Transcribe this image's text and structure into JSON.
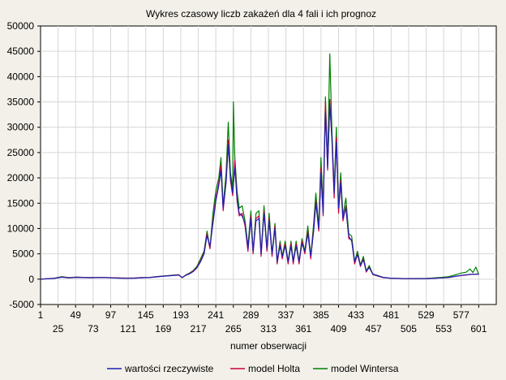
{
  "chart_data": {
    "type": "line",
    "title": "Wykres czasowy liczb zakażeń dla 4 fali i ich prognoz",
    "xlabel": "numer obserwacji",
    "ylabel": "",
    "xlim": [
      1,
      625
    ],
    "ylim": [
      -5000,
      50000
    ],
    "x_ticks_upper": [
      "1",
      "49",
      "97",
      "145",
      "193",
      "241",
      "289",
      "337",
      "385",
      "433",
      "481",
      "529",
      "577"
    ],
    "x_ticks_lower": [
      "25",
      "73",
      "121",
      "169",
      "217",
      "265",
      "313",
      "361",
      "409",
      "457",
      "505",
      "553",
      "601"
    ],
    "y_ticks": [
      "-5000",
      "0",
      "5000",
      "10000",
      "15000",
      "20000",
      "25000",
      "30000",
      "35000",
      "40000",
      "45000",
      "50000"
    ],
    "grid": true,
    "legend_position": "bottom",
    "series": [
      {
        "name": "wartości rzeczywiste",
        "color": "#1f1fb4",
        "points": [
          [
            1,
            0
          ],
          [
            20,
            150
          ],
          [
            30,
            380
          ],
          [
            40,
            250
          ],
          [
            50,
            350
          ],
          [
            60,
            300
          ],
          [
            70,
            280
          ],
          [
            80,
            320
          ],
          [
            90,
            300
          ],
          [
            100,
            250
          ],
          [
            110,
            200
          ],
          [
            120,
            180
          ],
          [
            130,
            200
          ],
          [
            140,
            280
          ],
          [
            150,
            300
          ],
          [
            160,
            450
          ],
          [
            170,
            600
          ],
          [
            180,
            700
          ],
          [
            190,
            800
          ],
          [
            195,
            350
          ],
          [
            200,
            750
          ],
          [
            205,
            1050
          ],
          [
            210,
            1500
          ],
          [
            215,
            2200
          ],
          [
            220,
            3400
          ],
          [
            225,
            5000
          ],
          [
            229,
            8600
          ],
          [
            233,
            6500
          ],
          [
            237,
            11000
          ],
          [
            241,
            15500
          ],
          [
            245,
            18500
          ],
          [
            248,
            21500
          ],
          [
            251,
            14000
          ],
          [
            255,
            19000
          ],
          [
            258,
            26500
          ],
          [
            261,
            20000
          ],
          [
            264,
            17000
          ],
          [
            267,
            22000
          ],
          [
            270,
            16000
          ],
          [
            273,
            13000
          ],
          [
            277,
            12500
          ],
          [
            281,
            11000
          ],
          [
            285,
            6000
          ],
          [
            289,
            12000
          ],
          [
            292,
            5500
          ],
          [
            296,
            11500
          ],
          [
            300,
            12000
          ],
          [
            303,
            5000
          ],
          [
            307,
            13000
          ],
          [
            311,
            6000
          ],
          [
            314,
            11500
          ],
          [
            318,
            5000
          ],
          [
            322,
            10000
          ],
          [
            325,
            3500
          ],
          [
            329,
            6500
          ],
          [
            332,
            4500
          ],
          [
            336,
            6500
          ],
          [
            340,
            3500
          ],
          [
            344,
            6500
          ],
          [
            347,
            3500
          ],
          [
            351,
            6500
          ],
          [
            355,
            3500
          ],
          [
            359,
            7000
          ],
          [
            363,
            5500
          ],
          [
            367,
            9000
          ],
          [
            371,
            4500
          ],
          [
            375,
            9500
          ],
          [
            378,
            15000
          ],
          [
            382,
            10000
          ],
          [
            385,
            21000
          ],
          [
            388,
            13000
          ],
          [
            391,
            33000
          ],
          [
            394,
            22000
          ],
          [
            397,
            34500
          ],
          [
            400,
            28000
          ],
          [
            403,
            17000
          ],
          [
            406,
            27000
          ],
          [
            409,
            14000
          ],
          [
            412,
            19000
          ],
          [
            415,
            12000
          ],
          [
            419,
            14000
          ],
          [
            423,
            8500
          ],
          [
            427,
            7500
          ],
          [
            431,
            3500
          ],
          [
            435,
            4800
          ],
          [
            439,
            2800
          ],
          [
            443,
            3800
          ],
          [
            447,
            1600
          ],
          [
            451,
            2300
          ],
          [
            456,
            1000
          ],
          [
            462,
            700
          ],
          [
            470,
            350
          ],
          [
            480,
            200
          ],
          [
            500,
            100
          ],
          [
            530,
            120
          ],
          [
            550,
            250
          ],
          [
            560,
            350
          ],
          [
            570,
            600
          ],
          [
            580,
            800
          ],
          [
            590,
            950
          ],
          [
            601,
            1000
          ]
        ]
      },
      {
        "name": "model Holta",
        "color": "#c8003c",
        "points": [
          [
            1,
            0
          ],
          [
            20,
            180
          ],
          [
            30,
            420
          ],
          [
            40,
            280
          ],
          [
            50,
            380
          ],
          [
            60,
            330
          ],
          [
            70,
            300
          ],
          [
            80,
            340
          ],
          [
            90,
            320
          ],
          [
            100,
            270
          ],
          [
            110,
            220
          ],
          [
            120,
            200
          ],
          [
            130,
            220
          ],
          [
            140,
            300
          ],
          [
            150,
            320
          ],
          [
            160,
            480
          ],
          [
            170,
            620
          ],
          [
            180,
            720
          ],
          [
            190,
            850
          ],
          [
            195,
            300
          ],
          [
            200,
            800
          ],
          [
            205,
            1100
          ],
          [
            210,
            1600
          ],
          [
            215,
            2300
          ],
          [
            220,
            3600
          ],
          [
            225,
            5200
          ],
          [
            229,
            9000
          ],
          [
            233,
            6000
          ],
          [
            237,
            11500
          ],
          [
            241,
            16000
          ],
          [
            245,
            19000
          ],
          [
            248,
            22500
          ],
          [
            251,
            13500
          ],
          [
            255,
            19500
          ],
          [
            258,
            27500
          ],
          [
            261,
            19500
          ],
          [
            264,
            16500
          ],
          [
            267,
            23500
          ],
          [
            270,
            15500
          ],
          [
            273,
            12500
          ],
          [
            277,
            13000
          ],
          [
            281,
            10500
          ],
          [
            285,
            5500
          ],
          [
            289,
            12500
          ],
          [
            292,
            5000
          ],
          [
            296,
            12000
          ],
          [
            300,
            12500
          ],
          [
            303,
            4500
          ],
          [
            307,
            13500
          ],
          [
            311,
            5500
          ],
          [
            314,
            12000
          ],
          [
            318,
            4500
          ],
          [
            322,
            10500
          ],
          [
            325,
            3000
          ],
          [
            329,
            7000
          ],
          [
            332,
            4000
          ],
          [
            336,
            7000
          ],
          [
            340,
            3000
          ],
          [
            344,
            7000
          ],
          [
            347,
            3000
          ],
          [
            351,
            7000
          ],
          [
            355,
            3000
          ],
          [
            359,
            7500
          ],
          [
            363,
            5000
          ],
          [
            367,
            9500
          ],
          [
            371,
            4000
          ],
          [
            375,
            10000
          ],
          [
            378,
            15500
          ],
          [
            382,
            9500
          ],
          [
            385,
            22000
          ],
          [
            388,
            12500
          ],
          [
            391,
            35000
          ],
          [
            394,
            21500
          ],
          [
            397,
            35500
          ],
          [
            400,
            27000
          ],
          [
            403,
            16000
          ],
          [
            406,
            28000
          ],
          [
            409,
            13000
          ],
          [
            412,
            19500
          ],
          [
            415,
            11500
          ],
          [
            419,
            14500
          ],
          [
            423,
            8000
          ],
          [
            427,
            7800
          ],
          [
            431,
            3000
          ],
          [
            435,
            5000
          ],
          [
            439,
            2500
          ],
          [
            443,
            4000
          ],
          [
            447,
            1400
          ],
          [
            451,
            2400
          ],
          [
            456,
            900
          ],
          [
            462,
            650
          ],
          [
            470,
            300
          ],
          [
            480,
            180
          ],
          [
            500,
            100
          ],
          [
            530,
            110
          ],
          [
            550,
            240
          ],
          [
            560,
            330
          ],
          [
            570,
            580
          ],
          [
            580,
            780
          ],
          [
            590,
            930
          ],
          [
            601,
            980
          ]
        ]
      },
      {
        "name": "model Wintersa",
        "color": "#008000",
        "points": [
          [
            1,
            0
          ],
          [
            20,
            200
          ],
          [
            30,
            500
          ],
          [
            40,
            300
          ],
          [
            50,
            420
          ],
          [
            60,
            350
          ],
          [
            70,
            320
          ],
          [
            80,
            360
          ],
          [
            90,
            340
          ],
          [
            100,
            280
          ],
          [
            110,
            230
          ],
          [
            120,
            210
          ],
          [
            130,
            240
          ],
          [
            140,
            320
          ],
          [
            150,
            340
          ],
          [
            160,
            520
          ],
          [
            170,
            650
          ],
          [
            180,
            760
          ],
          [
            190,
            900
          ],
          [
            195,
            280
          ],
          [
            200,
            850
          ],
          [
            205,
            1200
          ],
          [
            210,
            1700
          ],
          [
            215,
            2500
          ],
          [
            220,
            4000
          ],
          [
            225,
            5600
          ],
          [
            229,
            9500
          ],
          [
            233,
            6200
          ],
          [
            237,
            13000
          ],
          [
            241,
            17500
          ],
          [
            245,
            20000
          ],
          [
            248,
            24000
          ],
          [
            251,
            14500
          ],
          [
            255,
            21000
          ],
          [
            258,
            31000
          ],
          [
            261,
            21000
          ],
          [
            264,
            18000
          ],
          [
            265,
            35000
          ],
          [
            267,
            24000
          ],
          [
            270,
            17500
          ],
          [
            273,
            14000
          ],
          [
            277,
            14500
          ],
          [
            281,
            11500
          ],
          [
            285,
            6500
          ],
          [
            289,
            13500
          ],
          [
            292,
            5500
          ],
          [
            296,
            13000
          ],
          [
            300,
            13500
          ],
          [
            303,
            5000
          ],
          [
            307,
            14500
          ],
          [
            311,
            6000
          ],
          [
            314,
            13000
          ],
          [
            318,
            5000
          ],
          [
            322,
            11000
          ],
          [
            325,
            3500
          ],
          [
            329,
            7500
          ],
          [
            332,
            4500
          ],
          [
            336,
            7500
          ],
          [
            340,
            3500
          ],
          [
            344,
            7500
          ],
          [
            347,
            3500
          ],
          [
            351,
            7500
          ],
          [
            355,
            3500
          ],
          [
            359,
            8000
          ],
          [
            363,
            5500
          ],
          [
            367,
            10500
          ],
          [
            371,
            4500
          ],
          [
            375,
            11000
          ],
          [
            378,
            17000
          ],
          [
            382,
            10500
          ],
          [
            385,
            24000
          ],
          [
            388,
            14000
          ],
          [
            391,
            36000
          ],
          [
            394,
            23000
          ],
          [
            397,
            44500
          ],
          [
            400,
            29000
          ],
          [
            403,
            17500
          ],
          [
            406,
            30000
          ],
          [
            409,
            14000
          ],
          [
            412,
            21000
          ],
          [
            415,
            12500
          ],
          [
            419,
            16000
          ],
          [
            423,
            9000
          ],
          [
            427,
            8500
          ],
          [
            431,
            3500
          ],
          [
            435,
            5500
          ],
          [
            439,
            2800
          ],
          [
            443,
            4500
          ],
          [
            447,
            1600
          ],
          [
            451,
            2700
          ],
          [
            456,
            1000
          ],
          [
            462,
            750
          ],
          [
            470,
            350
          ],
          [
            480,
            200
          ],
          [
            500,
            120
          ],
          [
            530,
            150
          ],
          [
            550,
            350
          ],
          [
            560,
            500
          ],
          [
            570,
            900
          ],
          [
            577,
            1200
          ],
          [
            584,
            1400
          ],
          [
            589,
            2000
          ],
          [
            593,
            1300
          ],
          [
            597,
            2400
          ],
          [
            601,
            900
          ]
        ]
      }
    ]
  }
}
